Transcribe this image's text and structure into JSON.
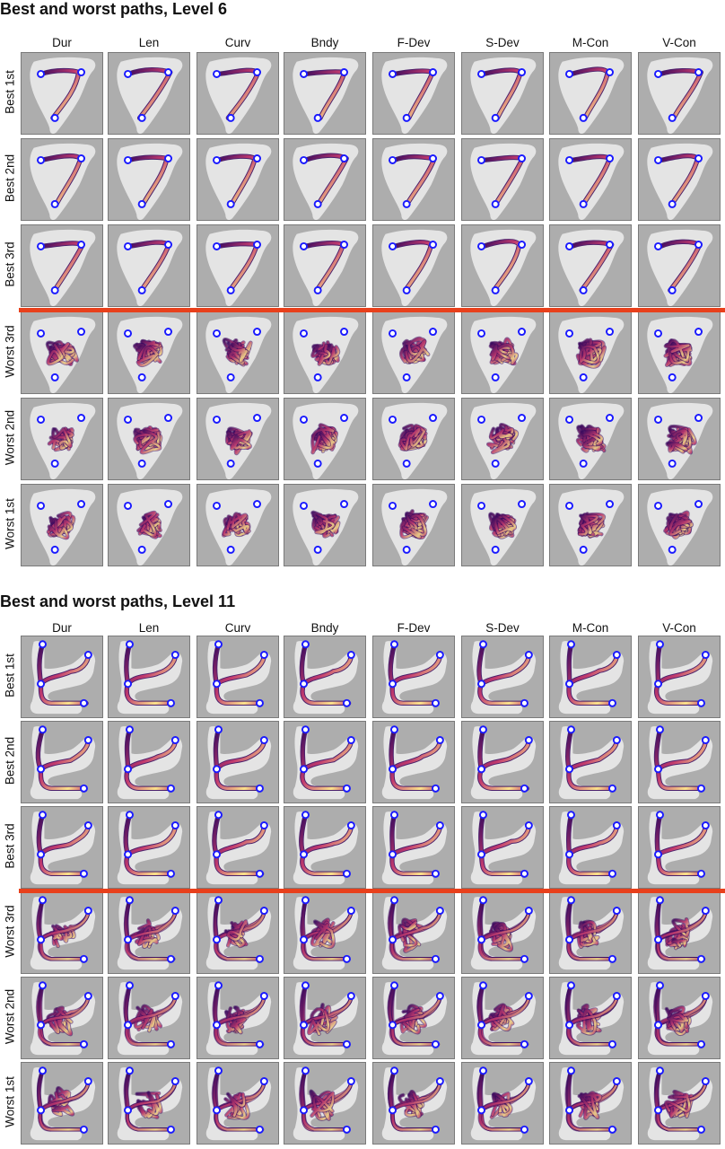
{
  "sections": [
    {
      "title": "Best and worst paths, Level 6",
      "level": 6,
      "columns": [
        "Dur",
        "Len",
        "Curv",
        "Bndy",
        "F-Dev",
        "S-Dev",
        "M-Con",
        "V-Con"
      ],
      "rows": [
        "Best 1st",
        "Best 2nd",
        "Best 3rd",
        "Worst 3rd",
        "Worst 2nd",
        "Worst 1st"
      ]
    },
    {
      "title": "Best and worst paths, Level 11",
      "level": 11,
      "columns": [
        "Dur",
        "Len",
        "Curv",
        "Bndy",
        "F-Dev",
        "S-Dev",
        "M-Con",
        "V-Con"
      ],
      "rows": [
        "Best 1st",
        "Best 2nd",
        "Best 3rd",
        "Worst 3rd",
        "Worst 2nd",
        "Worst 1st"
      ]
    }
  ],
  "colors": {
    "panel_background": "#adadad",
    "arena": "#e4e4e4",
    "waypoint": "#1a1aff",
    "divider": "#e8401c",
    "path_dark": "#3a0a5e",
    "path_mid": "#c23a6e",
    "path_light": "#fce38a"
  }
}
